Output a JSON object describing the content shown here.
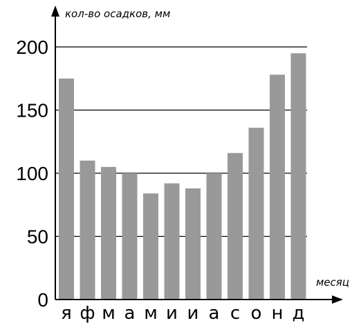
{
  "chart_data": {
    "type": "bar",
    "title": "",
    "ylabel": "кол-во осадков, мм",
    "xlabel": "месяц",
    "categories": [
      "я",
      "ф",
      "м",
      "а",
      "м",
      "и",
      "и",
      "а",
      "с",
      "о",
      "н",
      "д"
    ],
    "values": [
      175,
      110,
      105,
      100,
      84,
      92,
      88,
      100,
      116,
      136,
      178,
      195
    ],
    "ylim": [
      0,
      200
    ],
    "yticks": [
      "0",
      "50",
      "100",
      "150",
      "200"
    ],
    "grid": true,
    "bar_color": "#999999",
    "grid_color": "#000000"
  }
}
